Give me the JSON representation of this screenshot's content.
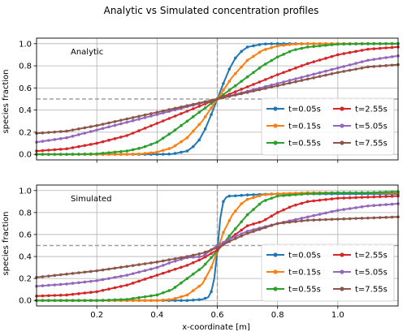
{
  "figure": {
    "title": "Analytic vs Simulated concentration profiles",
    "xlabel": "x-coordinate [m]",
    "ylabel": "species fraction"
  },
  "colors": {
    "t=0.05s": "#1f77b4",
    "t=0.15s": "#ff7f0e",
    "t=0.55s": "#2ca02c",
    "t=2.55s": "#d62728",
    "t=5.05s": "#9467bd",
    "t=7.55s": "#8c564b",
    "grid": "#b0b0b0",
    "reference": "#a0a0a0"
  },
  "chart_data": [
    {
      "type": "line",
      "panel_label": "Analytic",
      "xlim": [
        0,
        1.2
      ],
      "ylim": [
        -0.05,
        1.05
      ],
      "x_ticks": [
        "0.2",
        "0.4",
        "0.6",
        "0.8",
        "1.0"
      ],
      "y_ticks": [
        "0.0",
        "0.2",
        "0.4",
        "0.6",
        "0.8",
        "1.0"
      ],
      "grid": true,
      "legend_placement": "lower-right",
      "reference_lines": {
        "vertical_x": 0.6,
        "horizontal_y": 0.5
      },
      "series": [
        {
          "name": "t=0.05s",
          "x": [
            0.0,
            0.1,
            0.2,
            0.3,
            0.4,
            0.45,
            0.5,
            0.52,
            0.54,
            0.56,
            0.58,
            0.6,
            0.62,
            0.64,
            0.66,
            0.68,
            0.7,
            0.75,
            0.8,
            0.9,
            1.0,
            1.2
          ],
          "values": [
            0.0,
            0.0,
            0.0,
            0.0,
            0.0,
            0.003,
            0.03,
            0.07,
            0.13,
            0.23,
            0.36,
            0.5,
            0.64,
            0.77,
            0.87,
            0.93,
            0.97,
            0.997,
            1.0,
            1.0,
            1.0,
            1.0
          ]
        },
        {
          "name": "t=0.15s",
          "x": [
            0.0,
            0.1,
            0.2,
            0.3,
            0.35,
            0.4,
            0.45,
            0.5,
            0.55,
            0.6,
            0.65,
            0.7,
            0.75,
            0.8,
            0.85,
            0.9,
            1.0,
            1.2
          ],
          "values": [
            0.0,
            0.0,
            0.0,
            0.0,
            0.005,
            0.02,
            0.06,
            0.15,
            0.3,
            0.5,
            0.7,
            0.85,
            0.94,
            0.98,
            0.995,
            1.0,
            1.0,
            1.0
          ]
        },
        {
          "name": "t=0.55s",
          "x": [
            0.0,
            0.1,
            0.2,
            0.3,
            0.35,
            0.4,
            0.45,
            0.5,
            0.55,
            0.6,
            0.65,
            0.7,
            0.75,
            0.8,
            0.85,
            0.9,
            1.0,
            1.1,
            1.2
          ],
          "values": [
            0.0,
            0.0,
            0.005,
            0.03,
            0.06,
            0.11,
            0.2,
            0.3,
            0.4,
            0.5,
            0.6,
            0.7,
            0.8,
            0.88,
            0.94,
            0.97,
            0.995,
            1.0,
            1.0
          ]
        },
        {
          "name": "t=2.55s",
          "x": [
            0.0,
            0.1,
            0.2,
            0.3,
            0.4,
            0.5,
            0.6,
            0.7,
            0.8,
            0.9,
            1.0,
            1.1,
            1.2
          ],
          "values": [
            0.03,
            0.05,
            0.1,
            0.17,
            0.28,
            0.39,
            0.5,
            0.61,
            0.72,
            0.82,
            0.9,
            0.95,
            0.97
          ]
        },
        {
          "name": "t=5.05s",
          "x": [
            0.0,
            0.1,
            0.2,
            0.3,
            0.4,
            0.5,
            0.6,
            0.7,
            0.8,
            0.9,
            1.0,
            1.1,
            1.2
          ],
          "values": [
            0.11,
            0.15,
            0.22,
            0.29,
            0.36,
            0.43,
            0.5,
            0.57,
            0.64,
            0.71,
            0.78,
            0.85,
            0.89
          ]
        },
        {
          "name": "t=7.55s",
          "x": [
            0.0,
            0.1,
            0.2,
            0.3,
            0.4,
            0.5,
            0.6,
            0.7,
            0.8,
            0.9,
            1.0,
            1.1,
            1.2
          ],
          "values": [
            0.19,
            0.21,
            0.26,
            0.32,
            0.38,
            0.44,
            0.5,
            0.56,
            0.62,
            0.68,
            0.74,
            0.79,
            0.81
          ]
        }
      ]
    },
    {
      "type": "line",
      "panel_label": "Simulated",
      "xlim": [
        0,
        1.2
      ],
      "ylim": [
        -0.05,
        1.05
      ],
      "x_ticks": [
        "0.2",
        "0.4",
        "0.6",
        "0.8",
        "1.0"
      ],
      "y_ticks": [
        "0.0",
        "0.2",
        "0.4",
        "0.6",
        "0.8",
        "1.0"
      ],
      "grid": true,
      "legend_placement": "lower-right",
      "reference_lines": {
        "vertical_x": 0.6,
        "horizontal_y": 0.5
      },
      "series": [
        {
          "name": "t=0.05s",
          "x": [
            0.0,
            0.2,
            0.4,
            0.5,
            0.55,
            0.57,
            0.58,
            0.59,
            0.6,
            0.61,
            0.62,
            0.63,
            0.64,
            0.65,
            0.7,
            0.8,
            0.9,
            1.0,
            1.2
          ],
          "values": [
            0.0,
            0.0,
            0.0,
            0.0,
            0.01,
            0.03,
            0.08,
            0.2,
            0.45,
            0.75,
            0.9,
            0.94,
            0.95,
            0.95,
            0.96,
            0.97,
            0.97,
            0.97,
            0.97
          ]
        },
        {
          "name": "t=0.15s",
          "x": [
            0.0,
            0.2,
            0.4,
            0.45,
            0.5,
            0.55,
            0.58,
            0.6,
            0.62,
            0.65,
            0.68,
            0.7,
            0.75,
            0.8,
            0.9,
            1.0,
            1.2
          ],
          "values": [
            0.0,
            0.0,
            0.0,
            0.01,
            0.05,
            0.15,
            0.3,
            0.45,
            0.62,
            0.78,
            0.88,
            0.92,
            0.96,
            0.97,
            0.98,
            0.98,
            0.98
          ]
        },
        {
          "name": "t=0.55s",
          "x": [
            0.0,
            0.2,
            0.3,
            0.4,
            0.45,
            0.5,
            0.55,
            0.6,
            0.65,
            0.7,
            0.75,
            0.8,
            0.85,
            0.9,
            1.0,
            1.1,
            1.2
          ],
          "values": [
            0.0,
            0.0,
            0.01,
            0.05,
            0.1,
            0.2,
            0.3,
            0.45,
            0.62,
            0.78,
            0.9,
            0.95,
            0.96,
            0.97,
            0.98,
            0.98,
            0.99
          ]
        },
        {
          "name": "t=2.55s",
          "x": [
            0.0,
            0.1,
            0.2,
            0.3,
            0.4,
            0.5,
            0.55,
            0.6,
            0.65,
            0.7,
            0.75,
            0.8,
            0.85,
            0.9,
            1.0,
            1.1,
            1.2
          ],
          "values": [
            0.04,
            0.05,
            0.08,
            0.14,
            0.23,
            0.32,
            0.38,
            0.46,
            0.58,
            0.68,
            0.72,
            0.8,
            0.86,
            0.9,
            0.93,
            0.94,
            0.95
          ]
        },
        {
          "name": "t=5.05s",
          "x": [
            0.0,
            0.1,
            0.2,
            0.3,
            0.4,
            0.45,
            0.5,
            0.55,
            0.6,
            0.65,
            0.7,
            0.8,
            0.9,
            1.0,
            1.1,
            1.2
          ],
          "values": [
            0.13,
            0.15,
            0.18,
            0.23,
            0.3,
            0.35,
            0.39,
            0.4,
            0.5,
            0.57,
            0.63,
            0.7,
            0.76,
            0.82,
            0.86,
            0.88
          ]
        },
        {
          "name": "t=7.55s",
          "x": [
            0.0,
            0.1,
            0.2,
            0.3,
            0.4,
            0.5,
            0.55,
            0.6,
            0.65,
            0.7,
            0.8,
            0.9,
            1.0,
            1.1,
            1.2
          ],
          "values": [
            0.21,
            0.24,
            0.27,
            0.31,
            0.35,
            0.4,
            0.43,
            0.48,
            0.55,
            0.61,
            0.7,
            0.73,
            0.74,
            0.75,
            0.76
          ]
        }
      ]
    }
  ]
}
